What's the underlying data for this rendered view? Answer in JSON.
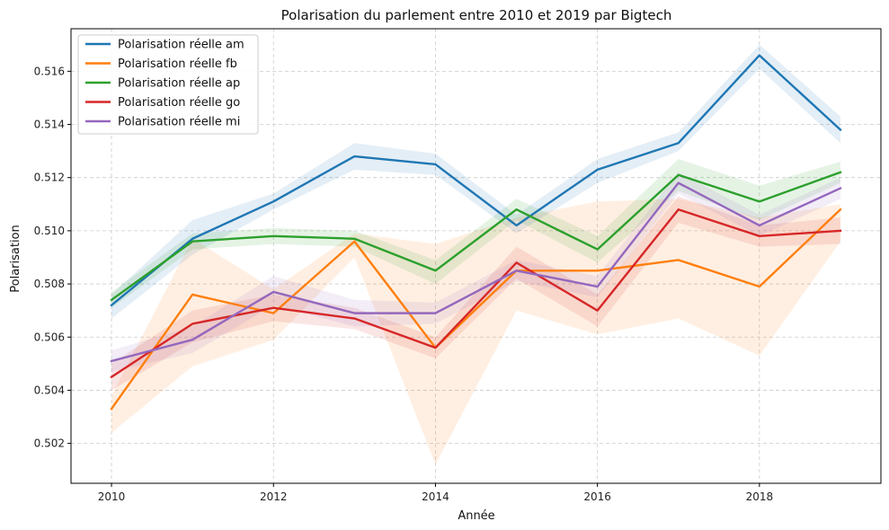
{
  "chart_data": {
    "type": "line",
    "title": "Polarisation du parlement entre 2010 et 2019 par Bigtech",
    "xlabel": "Année",
    "ylabel": "Polarisation",
    "x": [
      2010,
      2011,
      2012,
      2013,
      2014,
      2015,
      2016,
      2017,
      2018,
      2019
    ],
    "xlim": [
      2009.5,
      2019.5
    ],
    "ylim": [
      0.5005,
      0.5176
    ],
    "xticks": [
      2010,
      2012,
      2014,
      2016,
      2018
    ],
    "yticks": [
      0.502,
      0.504,
      0.506,
      0.508,
      0.51,
      0.512,
      0.514,
      0.516
    ],
    "grid": true,
    "legend_position": "top-left",
    "series": [
      {
        "name": "Polarisation réelle am",
        "color": "#1f77b4",
        "values": [
          0.5072,
          0.5097,
          0.5111,
          0.5128,
          0.5125,
          0.5102,
          0.5123,
          0.5133,
          0.5166,
          0.5138
        ],
        "lower": [
          0.5067,
          0.5091,
          0.5108,
          0.5123,
          0.5121,
          0.5099,
          0.5118,
          0.513,
          0.5161,
          0.5133
        ],
        "upper": [
          0.5076,
          0.5104,
          0.5114,
          0.5133,
          0.5129,
          0.5106,
          0.5127,
          0.5137,
          0.517,
          0.5143
        ]
      },
      {
        "name": "Polarisation réelle fb",
        "color": "#ff7f0e",
        "values": [
          0.5033,
          0.5076,
          0.5069,
          0.5096,
          0.5056,
          0.5085,
          0.5085,
          0.5089,
          0.5079,
          0.5108
        ],
        "lower": [
          0.5024,
          0.5049,
          0.5059,
          0.509,
          0.5012,
          0.507,
          0.5061,
          0.5067,
          0.5053,
          0.5096
        ],
        "upper": [
          0.5038,
          0.5097,
          0.5078,
          0.5099,
          0.5095,
          0.5105,
          0.5111,
          0.5112,
          0.5105,
          0.511
        ]
      },
      {
        "name": "Polarisation réelle ap",
        "color": "#2ca02c",
        "values": [
          0.5074,
          0.5096,
          0.5098,
          0.5097,
          0.5085,
          0.5108,
          0.5093,
          0.5121,
          0.5111,
          0.5122
        ],
        "lower": [
          0.5071,
          0.5093,
          0.5095,
          0.5094,
          0.508,
          0.5104,
          0.5088,
          0.5115,
          0.5104,
          0.5118
        ],
        "upper": [
          0.5077,
          0.5099,
          0.5101,
          0.51,
          0.5089,
          0.5112,
          0.5098,
          0.5127,
          0.5117,
          0.5126
        ]
      },
      {
        "name": "Polarisation réelle go",
        "color": "#d62728",
        "values": [
          0.5045,
          0.5065,
          0.5071,
          0.5067,
          0.5056,
          0.5088,
          0.507,
          0.5108,
          0.5098,
          0.51
        ],
        "lower": [
          0.504,
          0.5058,
          0.5066,
          0.5063,
          0.5052,
          0.5082,
          0.5064,
          0.5103,
          0.5094,
          0.5095
        ],
        "upper": [
          0.505,
          0.507,
          0.5076,
          0.5071,
          0.506,
          0.5094,
          0.5076,
          0.5113,
          0.5102,
          0.5105
        ]
      },
      {
        "name": "Polarisation réelle mi",
        "color": "#9467bd",
        "values": [
          0.5051,
          0.5059,
          0.5077,
          0.5069,
          0.5069,
          0.5085,
          0.5079,
          0.5118,
          0.5102,
          0.5116
        ],
        "lower": [
          0.5047,
          0.5054,
          0.5072,
          0.5064,
          0.5065,
          0.5081,
          0.5075,
          0.5114,
          0.5098,
          0.5112
        ],
        "upper": [
          0.5055,
          0.5064,
          0.5083,
          0.5074,
          0.5073,
          0.5089,
          0.5083,
          0.5122,
          0.5106,
          0.512
        ]
      }
    ]
  }
}
